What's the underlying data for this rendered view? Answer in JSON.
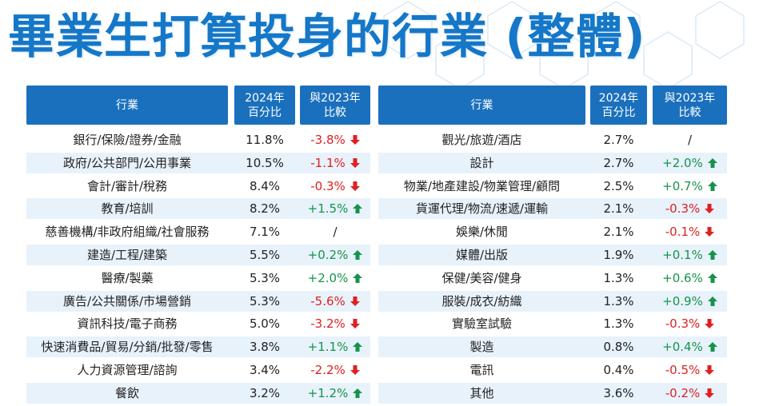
{
  "page": {
    "title": "畢業生打算投身的行業 (整體)"
  },
  "table": {
    "headers": {
      "industry": "行業",
      "share_line1": "2024年",
      "share_line2": "百分比",
      "change_line1": "與2023年",
      "change_line2": "比較"
    }
  },
  "chart_data": {
    "type": "table",
    "title": "畢業生打算投身的行業 (整體)",
    "columns": [
      "行業",
      "2024年百分比",
      "與2023年比較"
    ],
    "left_rows": [
      {
        "industry": "銀行/保險/證券/金融",
        "share": "11.8%",
        "change": "-3.8%",
        "dir": "down"
      },
      {
        "industry": "政府/公共部門/公用事業",
        "share": "10.5%",
        "change": "-1.1%",
        "dir": "down"
      },
      {
        "industry": "會計/審計/稅務",
        "share": "8.4%",
        "change": "-0.3%",
        "dir": "down"
      },
      {
        "industry": "教育/培訓",
        "share": "8.2%",
        "change": "+1.5%",
        "dir": "up"
      },
      {
        "industry": "慈善機構/非政府組織/社會服務",
        "share": "7.1%",
        "change": "/",
        "dir": "none"
      },
      {
        "industry": "建造/工程/建築",
        "share": "5.5%",
        "change": "+0.2%",
        "dir": "up"
      },
      {
        "industry": "醫療/製藥",
        "share": "5.3%",
        "change": "+2.0%",
        "dir": "up"
      },
      {
        "industry": "廣告/公共關係/市場營銷",
        "share": "5.3%",
        "change": "-5.6%",
        "dir": "down"
      },
      {
        "industry": "資訊科技/電子商務",
        "share": "5.0%",
        "change": "-3.2%",
        "dir": "down"
      },
      {
        "industry": "快速消費品/貿易/分銷/批發/零售",
        "share": "3.8%",
        "change": "+1.1%",
        "dir": "up"
      },
      {
        "industry": "人力資源管理/諮詢",
        "share": "3.4%",
        "change": "-2.2%",
        "dir": "down"
      },
      {
        "industry": "餐飲",
        "share": "3.2%",
        "change": "+1.2%",
        "dir": "up"
      }
    ],
    "right_rows": [
      {
        "industry": "觀光/旅遊/酒店",
        "share": "2.7%",
        "change": "/",
        "dir": "none"
      },
      {
        "industry": "設計",
        "share": "2.7%",
        "change": "+2.0%",
        "dir": "up"
      },
      {
        "industry": "物業/地產建設/物業管理/顧問",
        "share": "2.5%",
        "change": "+0.7%",
        "dir": "up"
      },
      {
        "industry": "貨運代理/物流/速遞/運輸",
        "share": "2.1%",
        "change": "-0.3%",
        "dir": "down"
      },
      {
        "industry": "娛樂/休閒",
        "share": "2.1%",
        "change": "-0.1%",
        "dir": "down"
      },
      {
        "industry": "媒體/出版",
        "share": "1.9%",
        "change": "+0.1%",
        "dir": "up"
      },
      {
        "industry": "保健/美容/健身",
        "share": "1.3%",
        "change": "+0.6%",
        "dir": "up"
      },
      {
        "industry": "服裝/成衣/紡織",
        "share": "1.3%",
        "change": "+0.9%",
        "dir": "up"
      },
      {
        "industry": "實驗室試驗",
        "share": "1.3%",
        "change": "-0.3%",
        "dir": "down"
      },
      {
        "industry": "製造",
        "share": "0.8%",
        "change": "+0.4%",
        "dir": "up"
      },
      {
        "industry": "電訊",
        "share": "0.4%",
        "change": "-0.5%",
        "dir": "down"
      },
      {
        "industry": "其他",
        "share": "3.6%",
        "change": "-0.2%",
        "dir": "down"
      }
    ],
    "colors": {
      "header_bg": "#1a70bd",
      "title": "#1577c8",
      "band": "#e8f2fb",
      "up": "#16934a",
      "down": "#e02020"
    }
  }
}
